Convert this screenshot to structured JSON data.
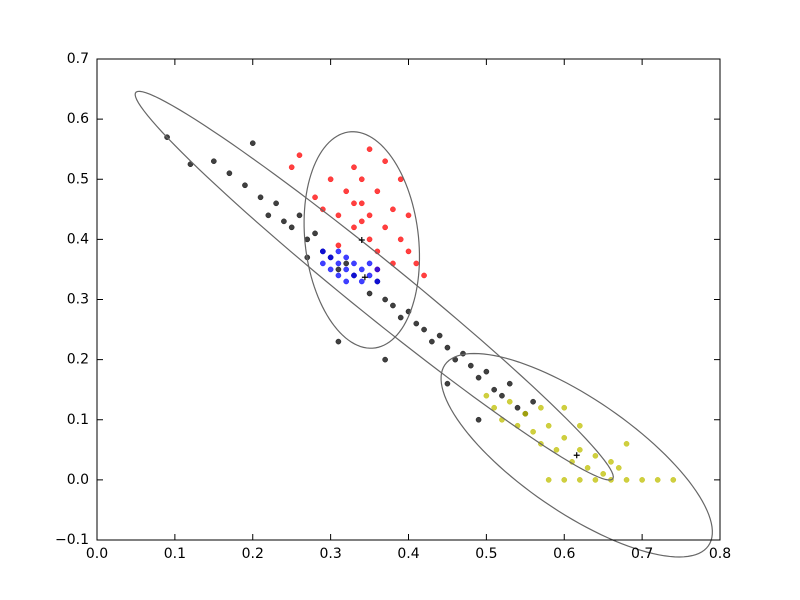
{
  "chart_data": {
    "type": "scatter",
    "xlim": [
      0,
      0.8
    ],
    "ylim": [
      -0.1,
      0.7
    ],
    "xticks": [
      {
        "value": 0,
        "label": "0.0"
      },
      0.1,
      0.2,
      0.3,
      0.4,
      0.5,
      0.6,
      0.7,
      0.8
    ],
    "yticks": [
      {
        "value": -0.1,
        "label": "−0.1"
      },
      {
        "value": 0,
        "label": "0.0"
      },
      0.1,
      0.2,
      0.3,
      0.4,
      0.5,
      0.6,
      0.7
    ],
    "series": [
      {
        "color": "#000000",
        "x": [
          0.09,
          0.12,
          0.15,
          0.17,
          0.19,
          0.2,
          0.21,
          0.22,
          0.23,
          0.24,
          0.25,
          0.26,
          0.27,
          0.28,
          0.29,
          0.3,
          0.31,
          0.32,
          0.33,
          0.35,
          0.36,
          0.37,
          0.38,
          0.39,
          0.4,
          0.41,
          0.42,
          0.43,
          0.44,
          0.45,
          0.46,
          0.47,
          0.48,
          0.49,
          0.5,
          0.51,
          0.52,
          0.53,
          0.54,
          0.55,
          0.56,
          0.31,
          0.37,
          0.45,
          0.27,
          0.49
        ],
        "y": [
          0.57,
          0.525,
          0.53,
          0.51,
          0.49,
          0.56,
          0.47,
          0.44,
          0.46,
          0.43,
          0.42,
          0.44,
          0.4,
          0.41,
          0.38,
          0.37,
          0.35,
          0.36,
          0.34,
          0.31,
          0.33,
          0.3,
          0.29,
          0.27,
          0.28,
          0.26,
          0.25,
          0.23,
          0.24,
          0.22,
          0.2,
          0.21,
          0.19,
          0.17,
          0.18,
          0.15,
          0.14,
          0.16,
          0.12,
          0.11,
          0.13,
          0.23,
          0.2,
          0.16,
          0.37,
          0.1
        ]
      },
      {
        "color": "#ff0000",
        "x": [
          0.25,
          0.26,
          0.28,
          0.29,
          0.3,
          0.31,
          0.32,
          0.33,
          0.33,
          0.34,
          0.34,
          0.35,
          0.35,
          0.36,
          0.36,
          0.37,
          0.37,
          0.38,
          0.38,
          0.39,
          0.39,
          0.4,
          0.4,
          0.41,
          0.42,
          0.35,
          0.31,
          0.36,
          0.34,
          0.33
        ],
        "y": [
          0.52,
          0.54,
          0.47,
          0.45,
          0.5,
          0.44,
          0.48,
          0.52,
          0.42,
          0.46,
          0.5,
          0.4,
          0.44,
          0.48,
          0.38,
          0.42,
          0.53,
          0.36,
          0.45,
          0.4,
          0.5,
          0.38,
          0.44,
          0.36,
          0.34,
          0.55,
          0.39,
          0.35,
          0.43,
          0.46
        ]
      },
      {
        "color": "#0000ff",
        "x": [
          0.29,
          0.3,
          0.31,
          0.32,
          0.33,
          0.34,
          0.35,
          0.36,
          0.3,
          0.31,
          0.32,
          0.33,
          0.34,
          0.35,
          0.29,
          0.36,
          0.32,
          0.31
        ],
        "y": [
          0.38,
          0.37,
          0.36,
          0.35,
          0.34,
          0.33,
          0.34,
          0.33,
          0.35,
          0.38,
          0.37,
          0.36,
          0.35,
          0.36,
          0.36,
          0.35,
          0.33,
          0.34
        ]
      },
      {
        "color": "#bfbf00",
        "x": [
          0.5,
          0.51,
          0.52,
          0.53,
          0.54,
          0.55,
          0.56,
          0.57,
          0.58,
          0.59,
          0.6,
          0.61,
          0.62,
          0.63,
          0.64,
          0.65,
          0.66,
          0.67,
          0.58,
          0.6,
          0.62,
          0.64,
          0.66,
          0.68,
          0.7,
          0.72,
          0.74,
          0.57,
          0.62,
          0.68,
          0.6
        ],
        "y": [
          0.14,
          0.12,
          0.1,
          0.13,
          0.09,
          0.11,
          0.08,
          0.06,
          0.09,
          0.05,
          0.07,
          0.03,
          0.05,
          0.02,
          0.04,
          0.01,
          0.03,
          0.02,
          0,
          0,
          0,
          0,
          0,
          0,
          0,
          0,
          0,
          0.12,
          0.09,
          0.06,
          0.12
        ]
      }
    ],
    "ellipses": [
      {
        "x": 0.356,
        "y": 0.323,
        "width": 0.888,
        "height": 0.08,
        "angle": -46.5
      },
      {
        "x": 0.34,
        "y": 0.399,
        "width": 0.361,
        "height": 0.146,
        "angle": 94.4
      },
      {
        "x": 0.616,
        "y": 0.041,
        "width": 0.455,
        "height": 0.17,
        "angle": -43.9
      }
    ],
    "centers": {
      "x": [
        0.34,
        0.344,
        0.616
      ],
      "y": [
        0.399,
        0.337,
        0.041
      ]
    }
  }
}
